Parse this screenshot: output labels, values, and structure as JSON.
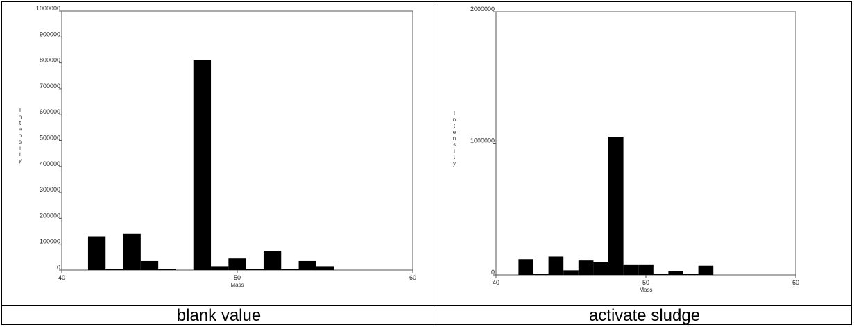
{
  "captions": [
    "blank value",
    "activate sludge"
  ],
  "chart_data": [
    {
      "type": "bar",
      "xlabel": "Mass",
      "ylabel": "Intensity",
      "xlim": [
        40,
        60
      ],
      "ylim": [
        0,
        1000000
      ],
      "xticks": [
        "40",
        "50",
        "60"
      ],
      "yticks": [
        "0",
        "100000",
        "200000",
        "300000",
        "400000",
        "500000",
        "600000",
        "700000",
        "800000",
        "900000",
        "1000000"
      ],
      "x": [
        42,
        43,
        44,
        45,
        46,
        48,
        49,
        50,
        51,
        52,
        53,
        54,
        55
      ],
      "values": [
        130000,
        5000,
        140000,
        35000,
        5000,
        810000,
        15000,
        45000,
        2000,
        75000,
        5000,
        35000,
        15000
      ]
    },
    {
      "type": "bar",
      "xlabel": "Mass",
      "ylabel": "Intensity",
      "xlim": [
        40,
        60
      ],
      "ylim": [
        0,
        2000000
      ],
      "xticks": [
        "40",
        "50",
        "60"
      ],
      "yticks": [
        "0",
        "1000000",
        "2000000"
      ],
      "x": [
        42,
        43,
        44,
        45,
        46,
        47,
        48,
        49,
        50,
        51,
        52,
        53,
        54
      ],
      "values": [
        120000,
        10000,
        140000,
        35000,
        110000,
        100000,
        1050000,
        80000,
        80000,
        5000,
        30000,
        5000,
        70000
      ]
    }
  ]
}
